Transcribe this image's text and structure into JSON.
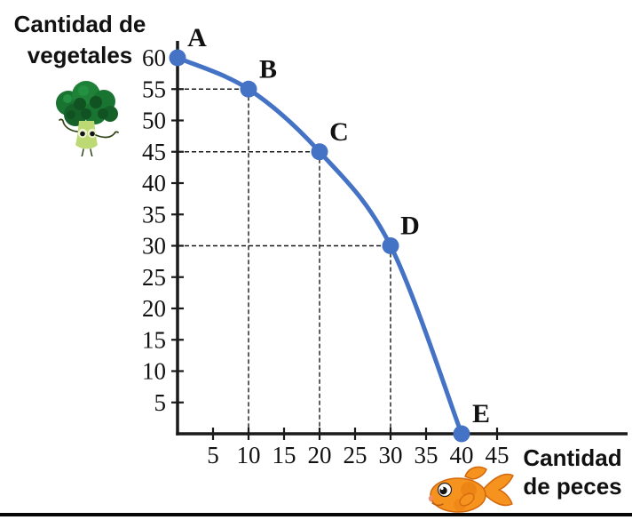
{
  "labels": {
    "y_axis_title": {
      "line1": "Cantidad de",
      "line2": "vegetales"
    },
    "x_axis_title": {
      "line1": "Cantidad",
      "line2": "de peces"
    }
  },
  "icons": {
    "y_axis_icon": "broccoli",
    "x_axis_icon": "goldfish"
  },
  "colors": {
    "curve": "#4472C4",
    "axis": "#1a1a1a",
    "text": "#111111",
    "guide": "#1a1a1a"
  },
  "chart_data": {
    "type": "line",
    "title": "",
    "xlabel": "Cantidad de peces",
    "ylabel": "Cantidad de vegetales",
    "x_ticks": [
      5,
      10,
      15,
      20,
      25,
      30,
      35,
      40,
      45
    ],
    "y_ticks": [
      5,
      10,
      15,
      20,
      25,
      30,
      35,
      40,
      45,
      50,
      55,
      60
    ],
    "xlim": [
      0,
      47
    ],
    "ylim": [
      0,
      63
    ],
    "grid": false,
    "legend": false,
    "points": [
      {
        "label": "A",
        "x": 0,
        "y": 60,
        "guides": false
      },
      {
        "label": "B",
        "x": 10,
        "y": 55,
        "guides": true
      },
      {
        "label": "C",
        "x": 20,
        "y": 45,
        "guides": true
      },
      {
        "label": "D",
        "x": 30,
        "y": 30,
        "guides": true
      },
      {
        "label": "E",
        "x": 40,
        "y": 0,
        "guides": false
      }
    ]
  }
}
